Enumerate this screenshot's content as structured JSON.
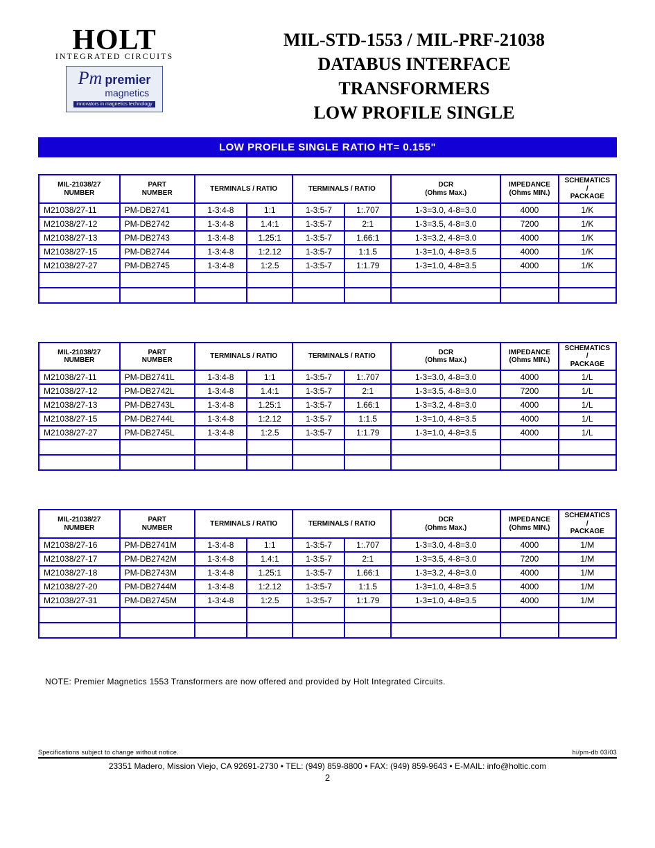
{
  "logos": {
    "holt": "HOLT",
    "holt_sub": "INTEGRATED CIRCUITS",
    "pm_script": "Pm",
    "pm_premier": "premier",
    "pm_magnetics": "magnetics",
    "pm_strap": "innovators in magnetics technology"
  },
  "title": {
    "l1": "MIL-STD-1553 / MIL-PRF-21038",
    "l2": "DATABUS  INTERFACE",
    "l3": "TRANSFORMERS",
    "l4": "LOW PROFILE SINGLE"
  },
  "banner": "LOW PROFILE SINGLE RATIO HT= 0.155\"",
  "columns": {
    "c1": "MIL-21038/27\nNUMBER",
    "c2": "PART\nNUMBER",
    "c3": "TERMINALS  /  RATIO",
    "c4": "TERMINALS  /  RATIO",
    "c5": "DCR\n(Ohms Max.)",
    "c6": "IMPEDANCE\n(Ohms MIN.)",
    "c7": "SCHEMATICS\n/\nPACKAGE"
  },
  "tables": [
    {
      "rows": [
        [
          "M21038/27-11",
          "PM-DB2741",
          "1-3:4-8",
          "1:1",
          "1-3:5-7",
          "1:.707",
          "1-3=3.0, 4-8=3.0",
          "4000",
          "1/K"
        ],
        [
          "M21038/27-12",
          "PM-DB2742",
          "1-3:4-8",
          "1.4:1",
          "1-3:5-7",
          "2:1",
          "1-3=3.5, 4-8=3.0",
          "7200",
          "1/K"
        ],
        [
          "M21038/27-13",
          "PM-DB2743",
          "1-3:4-8",
          "1.25:1",
          "1-3:5-7",
          "1.66:1",
          "1-3=3.2, 4-8=3.0",
          "4000",
          "1/K"
        ],
        [
          "M21038/27-15",
          "PM-DB2744",
          "1-3:4-8",
          "1:2.12",
          "1-3:5-7",
          "1:1.5",
          "1-3=1.0, 4-8=3.5",
          "4000",
          "1/K"
        ],
        [
          "M21038/27-27",
          "PM-DB2745",
          "1-3:4-8",
          "1:2.5",
          "1-3:5-7",
          "1:1.79",
          "1-3=1.0, 4-8=3.5",
          "4000",
          "1/K"
        ]
      ]
    },
    {
      "rows": [
        [
          "M21038/27-11",
          "PM-DB2741L",
          "1-3:4-8",
          "1:1",
          "1-3:5-7",
          "1:.707",
          "1-3=3.0, 4-8=3.0",
          "4000",
          "1/L"
        ],
        [
          "M21038/27-12",
          "PM-DB2742L",
          "1-3:4-8",
          "1.4:1",
          "1-3:5-7",
          "2:1",
          "1-3=3.5, 4-8=3.0",
          "7200",
          "1/L"
        ],
        [
          "M21038/27-13",
          "PM-DB2743L",
          "1-3:4-8",
          "1.25:1",
          "1-3:5-7",
          "1.66:1",
          "1-3=3.2, 4-8=3.0",
          "4000",
          "1/L"
        ],
        [
          "M21038/27-15",
          "PM-DB2744L",
          "1-3:4-8",
          "1:2.12",
          "1-3:5-7",
          "1:1.5",
          "1-3=1.0, 4-8=3.5",
          "4000",
          "1/L"
        ],
        [
          "M21038/27-27",
          "PM-DB2745L",
          "1-3:4-8",
          "1:2.5",
          "1-3:5-7",
          "1:1.79",
          "1-3=1.0, 4-8=3.5",
          "4000",
          "1/L"
        ]
      ]
    },
    {
      "rows": [
        [
          "M21038/27-16",
          "PM-DB2741M",
          "1-3:4-8",
          "1:1",
          "1-3:5-7",
          "1:.707",
          "1-3=3.0, 4-8=3.0",
          "4000",
          "1/M"
        ],
        [
          "M21038/27-17",
          "PM-DB2742M",
          "1-3:4-8",
          "1.4:1",
          "1-3:5-7",
          "2:1",
          "1-3=3.5, 4-8=3.0",
          "7200",
          "1/M"
        ],
        [
          "M21038/27-18",
          "PM-DB2743M",
          "1-3:4-8",
          "1.25:1",
          "1-3:5-7",
          "1.66:1",
          "1-3=3.2, 4-8=3.0",
          "4000",
          "1/M"
        ],
        [
          "M21038/27-20",
          "PM-DB2744M",
          "1-3:4-8",
          "1:2.12",
          "1-3:5-7",
          "1:1.5",
          "1-3=1.0, 4-8=3.5",
          "4000",
          "1/M"
        ],
        [
          "M21038/27-31",
          "PM-DB2745M",
          "1-3:4-8",
          "1:2.5",
          "1-3:5-7",
          "1:1.79",
          "1-3=1.0, 4-8=3.5",
          "4000",
          "1/M"
        ]
      ]
    }
  ],
  "note": "NOTE:   Premier Magnetics 1553 Transformers are now offered and provided by Holt Integrated Circuits.",
  "foot_left": "Specifications subject to change without notice.",
  "foot_right": "hi/pm-db 03/03",
  "address": "23351 Madero, Mission Viejo, CA 92691-2730 • TEL: (949) 859-8800 • FAX: (949) 859-9643 • E-MAIL: info@holtic.com",
  "page_number": "2",
  "style": {
    "blue": "#1200d6",
    "table_font_size": 12,
    "header_font_size": 10,
    "title_font_size": 26,
    "col_widths_pct": [
      14,
      13,
      9,
      8,
      9,
      8,
      19,
      10,
      10
    ]
  }
}
